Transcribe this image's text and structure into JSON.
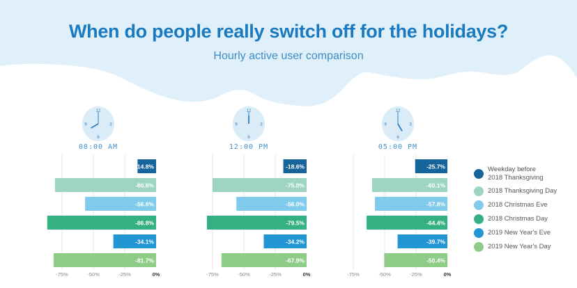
{
  "header": {
    "title": "When do people really switch off for the holidays?",
    "subtitle": "Hourly active user comparison"
  },
  "colors": {
    "sky": "#e0f0fa",
    "title": "#1a7abf",
    "clock_face": "#d9ecf8",
    "clock_ink": "#2f7fc0",
    "gridline": "#e6e6e6"
  },
  "clocks": [
    {
      "time_label": "08:00 AM",
      "hour": 8,
      "minute": 0,
      "numerals": [
        "12",
        "3",
        "6",
        "9"
      ]
    },
    {
      "time_label": "12:00 PM",
      "hour": 12,
      "minute": 0,
      "numerals": [
        "12",
        "3",
        "6",
        "9"
      ]
    },
    {
      "time_label": "05:00 PM",
      "hour": 5,
      "minute": 0,
      "numerals": [
        "12",
        "3",
        "6",
        "9"
      ]
    }
  ],
  "legend": [
    {
      "label_lines": [
        "Weekday before",
        "2018 Thanksgiving"
      ],
      "color": "#17649a"
    },
    {
      "label_lines": [
        "2018 Thanksgiving Day"
      ],
      "color": "#9dd5c0"
    },
    {
      "label_lines": [
        "2018 Christmas Eve"
      ],
      "color": "#80cbec"
    },
    {
      "label_lines": [
        "2018 Christmas Day"
      ],
      "color": "#35b083"
    },
    {
      "label_lines": [
        "2019 New Year's Eve"
      ],
      "color": "#2196d3"
    },
    {
      "label_lines": [
        "2019 New Year's Day"
      ],
      "color": "#8fcc88"
    }
  ],
  "chart_data": [
    {
      "type": "bar",
      "orientation": "horizontal",
      "title": "08:00 AM",
      "categories": [
        "Weekday before 2018 Thanksgiving",
        "2018 Thanksgiving Day",
        "2018 Christmas Eve",
        "2018 Christmas Day",
        "2019 New Year's Eve",
        "2019 New Year's Day"
      ],
      "values": [
        -14.8,
        -80.6,
        -56.6,
        -86.8,
        -34.1,
        -81.7
      ],
      "value_labels": [
        "-14.8%",
        "-80.6%",
        "-56.6%",
        "-86.8%",
        "-34.1%",
        "-81.7%"
      ],
      "xlim": [
        -90,
        0
      ],
      "xticks": [
        -75,
        -50,
        -25,
        0
      ],
      "xtick_labels": [
        "-75%",
        "-50%",
        "-25%",
        "0%"
      ],
      "grid": true
    },
    {
      "type": "bar",
      "orientation": "horizontal",
      "title": "12:00 PM",
      "categories": [
        "Weekday before 2018 Thanksgiving",
        "2018 Thanksgiving Day",
        "2018 Christmas Eve",
        "2018 Christmas Day",
        "2019 New Year's Eve",
        "2019 New Year's Day"
      ],
      "values": [
        -18.6,
        -75.0,
        -56.0,
        -79.5,
        -34.2,
        -67.9
      ],
      "value_labels": [
        "-18.6%",
        "-75.0%",
        "-56.0%",
        "-79.5%",
        "-34.2%",
        "-67.9%"
      ],
      "xlim": [
        -90,
        0
      ],
      "xticks": [
        -75,
        -50,
        -25,
        0
      ],
      "xtick_labels": [
        "-75%",
        "-50%",
        "-25%",
        "0%"
      ],
      "grid": true
    },
    {
      "type": "bar",
      "orientation": "horizontal",
      "title": "05:00 PM",
      "categories": [
        "Weekday before 2018 Thanksgiving",
        "2018 Thanksgiving Day",
        "2018 Christmas Eve",
        "2018 Christmas Day",
        "2019 New Year's Eve",
        "2019 New Year's Day"
      ],
      "values": [
        -25.7,
        -60.1,
        -57.8,
        -64.4,
        -39.7,
        -50.4
      ],
      "value_labels": [
        "-25.7%",
        "-60.1%",
        "-57.8%",
        "-64.4%",
        "-39.7%",
        "-50.4%"
      ],
      "xlim": [
        -90,
        0
      ],
      "xticks": [
        -75,
        -50,
        -25,
        0
      ],
      "xtick_labels": [
        "-75%",
        "-50%",
        "-25%",
        "0%"
      ],
      "grid": true
    }
  ]
}
